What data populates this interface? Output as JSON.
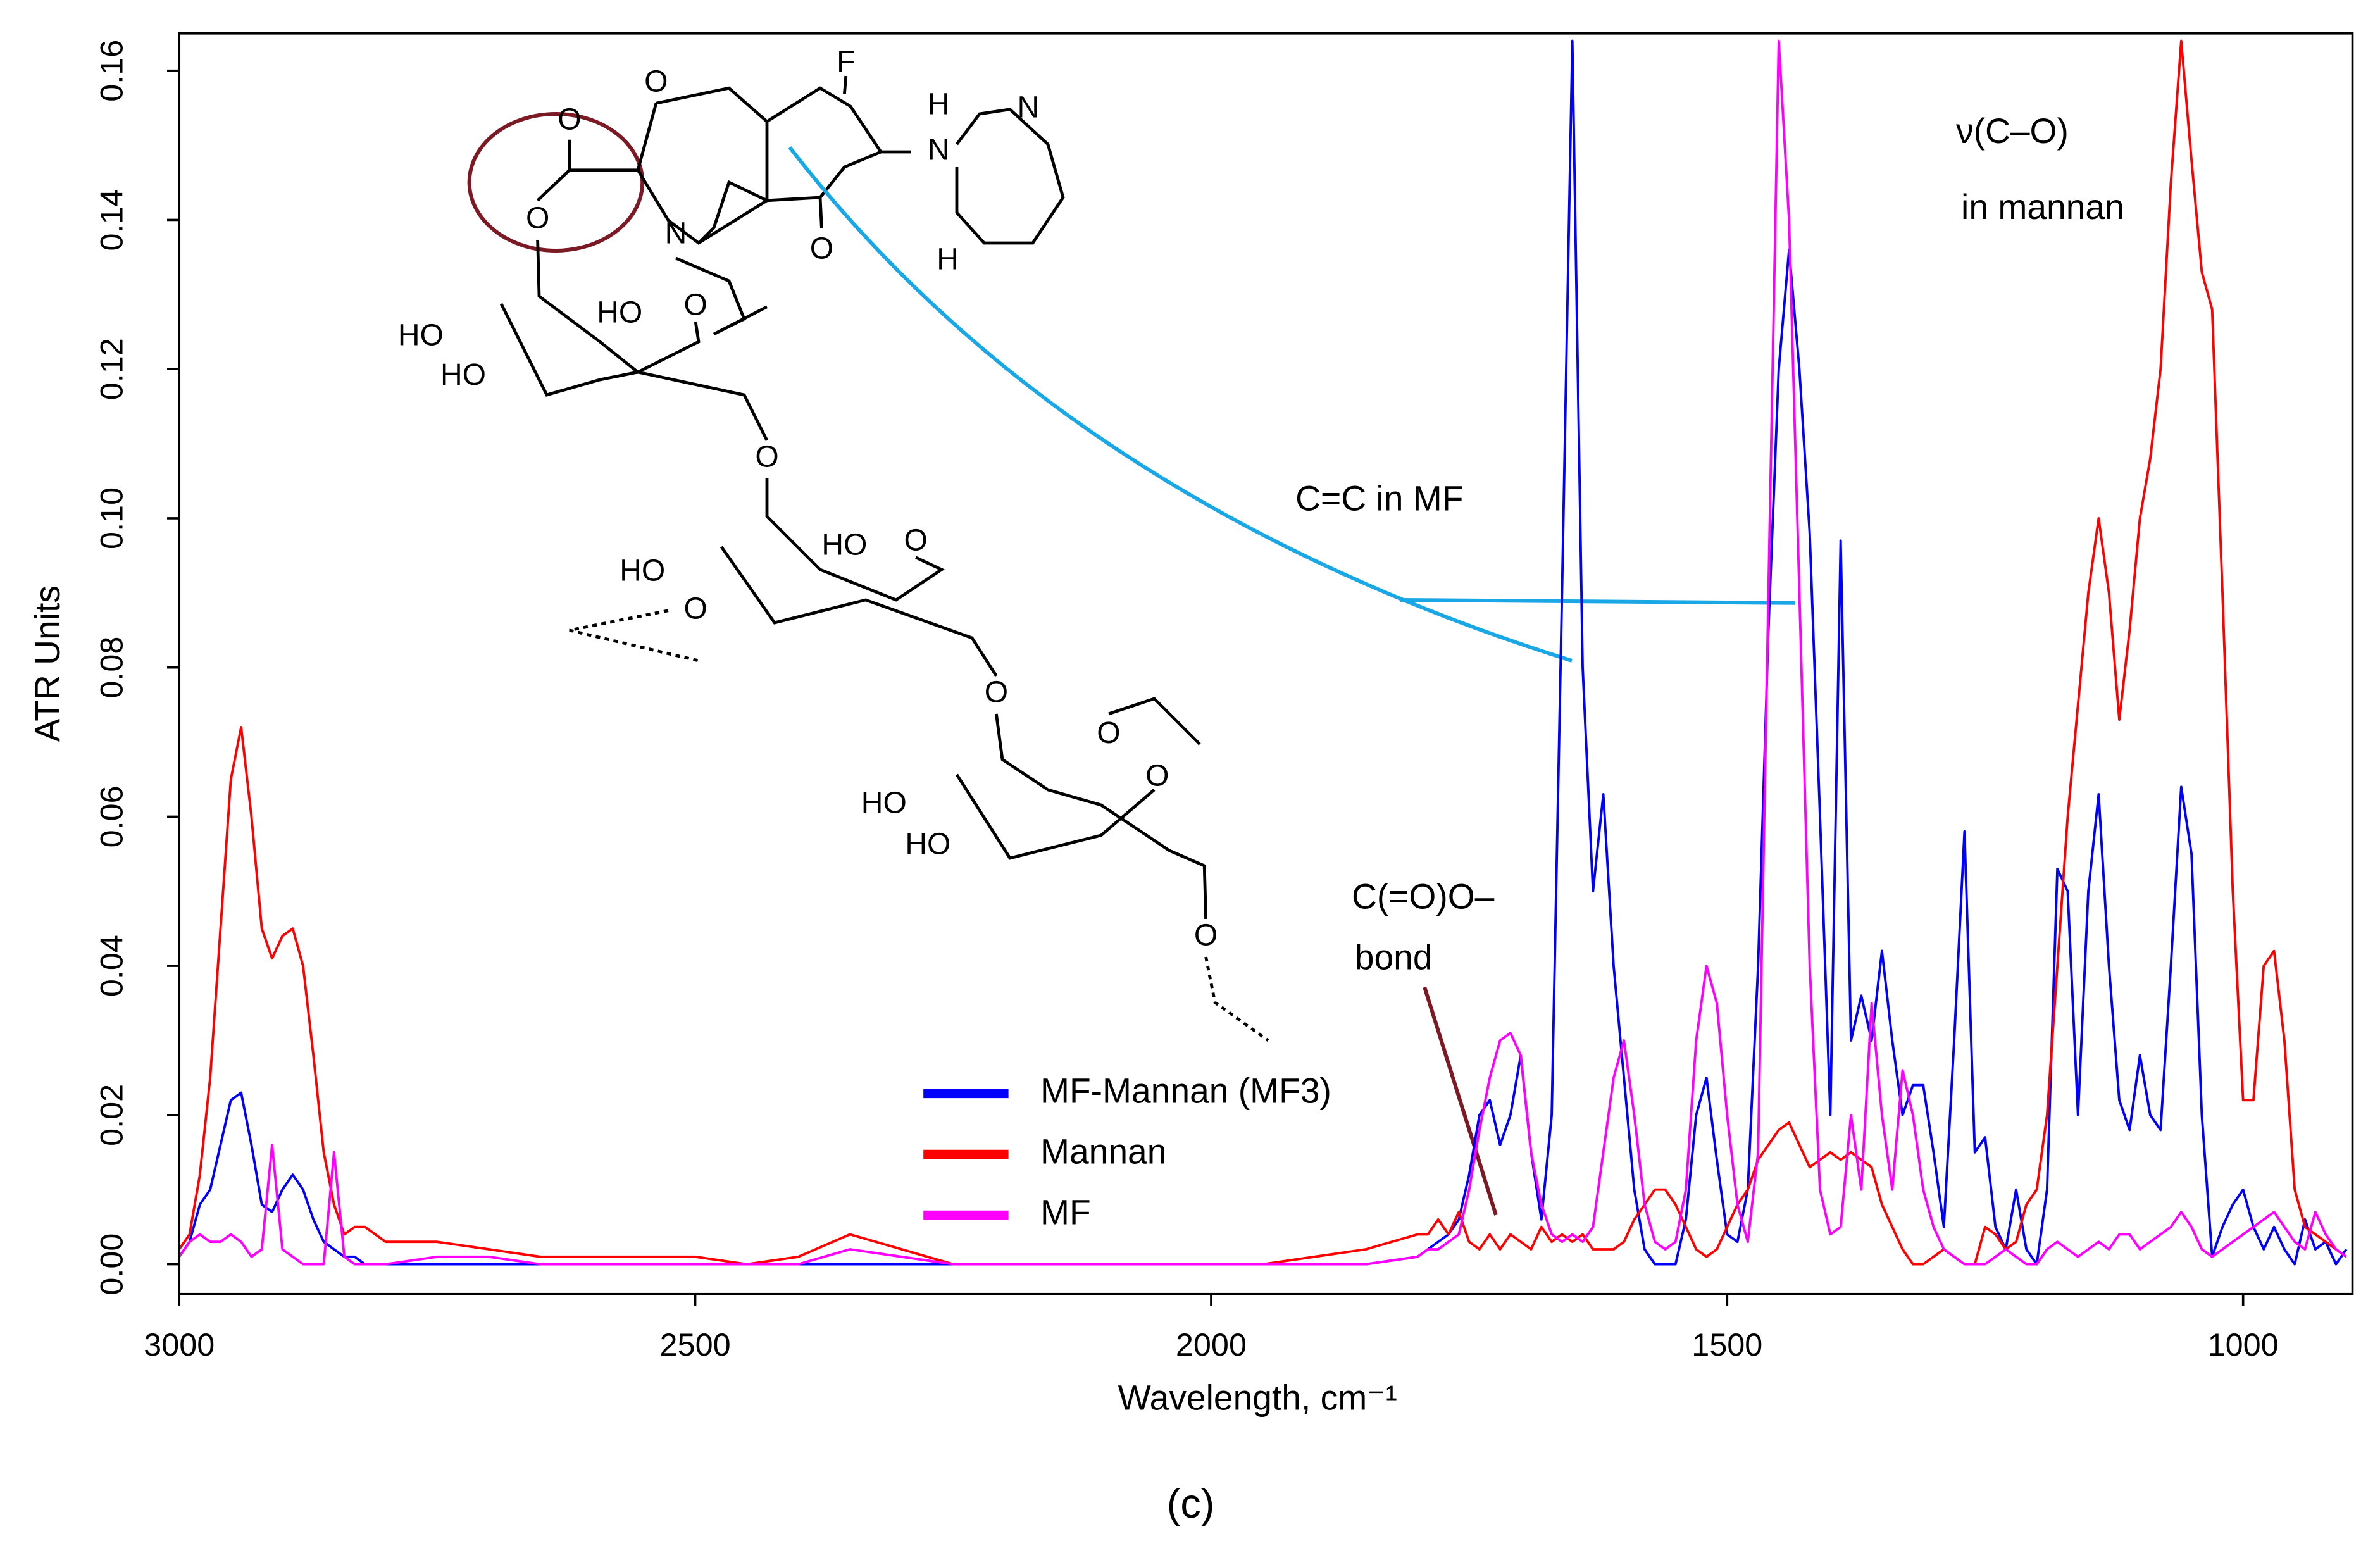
{
  "chart_data": {
    "type": "line",
    "x_label": "Wavelength, cm⁻¹",
    "y_label": "ATR Units",
    "caption": "(c)",
    "xlim": [
      3000,
      894
    ],
    "ylim": [
      -0.004,
      0.165
    ],
    "xticks": [
      3000,
      2500,
      2000,
      1500,
      1000
    ],
    "yticks": [
      {
        "value": 0,
        "label": "0.00"
      },
      {
        "value": 0.02,
        "label": "0.02"
      },
      {
        "value": 0.04,
        "label": "0.04"
      },
      {
        "value": 0.06,
        "label": "0.06"
      },
      {
        "value": 0.08,
        "label": "0.08"
      },
      {
        "value": 0.1,
        "label": "0.10"
      },
      {
        "value": 0.12,
        "label": "0.12"
      },
      {
        "value": 0.14,
        "label": "0.14"
      },
      {
        "value": 0.16,
        "label": "0.16"
      }
    ],
    "legend": "bottom-center",
    "annotations": [
      "ν(C–O)",
      "in mannan",
      "C=C in MF",
      "C(=O)O–",
      "bond"
    ],
    "structure_labels": [
      "O",
      "O",
      "O",
      "F",
      "N",
      "H",
      "N",
      "H",
      "N",
      "O",
      "HO",
      "HO",
      "O",
      "HO",
      "O",
      "HO",
      "HO",
      "O",
      "O",
      "O",
      "O",
      "HO",
      "O",
      "HO",
      "O"
    ],
    "x": [
      3000,
      2990,
      2980,
      2970,
      2960,
      2950,
      2940,
      2930,
      2920,
      2910,
      2900,
      2890,
      2880,
      2870,
      2860,
      2850,
      2840,
      2830,
      2820,
      2810,
      2800,
      2750,
      2700,
      2650,
      2600,
      2550,
      2500,
      2450,
      2400,
      2350,
      2300,
      2250,
      2200,
      2150,
      2100,
      2050,
      2000,
      1950,
      1900,
      1850,
      1800,
      1790,
      1780,
      1770,
      1760,
      1750,
      1740,
      1730,
      1720,
      1710,
      1700,
      1690,
      1680,
      1670,
      1660,
      1650,
      1640,
      1630,
      1620,
      1610,
      1600,
      1590,
      1580,
      1570,
      1560,
      1550,
      1540,
      1530,
      1520,
      1510,
      1500,
      1490,
      1480,
      1470,
      1460,
      1450,
      1440,
      1430,
      1420,
      1410,
      1400,
      1390,
      1380,
      1370,
      1360,
      1350,
      1340,
      1330,
      1320,
      1310,
      1300,
      1290,
      1280,
      1270,
      1260,
      1250,
      1240,
      1230,
      1220,
      1210,
      1200,
      1190,
      1180,
      1170,
      1160,
      1150,
      1140,
      1130,
      1120,
      1110,
      1100,
      1090,
      1080,
      1070,
      1060,
      1050,
      1040,
      1030,
      1020,
      1010,
      1000,
      990,
      980,
      970,
      960,
      950,
      940,
      930,
      920,
      910,
      900
    ],
    "series": [
      {
        "name": "MF-Mannan (MF3)",
        "color": "#0000ff",
        "values": [
          0.001,
          0.003,
          0.008,
          0.01,
          0.016,
          0.022,
          0.023,
          0.016,
          0.008,
          0.007,
          0.01,
          0.012,
          0.01,
          0.006,
          0.003,
          0.002,
          0.001,
          0.001,
          0,
          0,
          0,
          0,
          0,
          0,
          0,
          0,
          0,
          0,
          0,
          0,
          0,
          0,
          0,
          0,
          0,
          0,
          0,
          0,
          0,
          0,
          0.001,
          0.002,
          0.003,
          0.004,
          0.006,
          0.012,
          0.02,
          0.022,
          0.016,
          0.02,
          0.028,
          0.015,
          0.006,
          0.02,
          0.09,
          0.164,
          0.08,
          0.05,
          0.063,
          0.04,
          0.025,
          0.01,
          0.002,
          0,
          0,
          0,
          0.006,
          0.02,
          0.025,
          0.014,
          0.004,
          0.003,
          0.01,
          0.04,
          0.085,
          0.12,
          0.136,
          0.12,
          0.098,
          0.06,
          0.02,
          0.097,
          0.03,
          0.036,
          0.03,
          0.042,
          0.03,
          0.02,
          0.024,
          0.024,
          0.015,
          0.005,
          0.03,
          0.058,
          0.015,
          0.017,
          0.005,
          0.002,
          0.01,
          0.002,
          0,
          0.01,
          0.053,
          0.05,
          0.02,
          0.05,
          0.063,
          0.04,
          0.022,
          0.018,
          0.028,
          0.02,
          0.018,
          0.04,
          0.064,
          0.055,
          0.02,
          0.001,
          0.005,
          0.008,
          0.01,
          0.005,
          0.002,
          0.005,
          0.002,
          0,
          0.006,
          0.002,
          0.003,
          0,
          0.002
        ]
      },
      {
        "name": "Mannan",
        "color": "#ff0000",
        "values": [
          0.002,
          0.004,
          0.012,
          0.025,
          0.045,
          0.065,
          0.072,
          0.06,
          0.045,
          0.041,
          0.044,
          0.045,
          0.04,
          0.028,
          0.015,
          0.008,
          0.004,
          0.005,
          0.005,
          0.004,
          0.003,
          0.003,
          0.002,
          0.001,
          0.001,
          0.001,
          0.001,
          0,
          0.001,
          0.004,
          0.002,
          0,
          0,
          0,
          0,
          0,
          0,
          0,
          0.001,
          0.002,
          0.004,
          0.004,
          0.006,
          0.004,
          0.007,
          0.003,
          0.002,
          0.004,
          0.002,
          0.004,
          0.003,
          0.002,
          0.005,
          0.003,
          0.004,
          0.003,
          0.004,
          0.002,
          0.002,
          0.002,
          0.003,
          0.006,
          0.008,
          0.01,
          0.01,
          0.008,
          0.005,
          0.002,
          0.001,
          0.002,
          0.005,
          0.008,
          0.01,
          0.014,
          0.016,
          0.018,
          0.019,
          0.016,
          0.013,
          0.014,
          0.015,
          0.014,
          0.015,
          0.014,
          0.013,
          0.008,
          0.005,
          0.002,
          0,
          0,
          0.001,
          0.002,
          0.001,
          0,
          0,
          0.005,
          0.004,
          0.002,
          0.003,
          0.008,
          0.01,
          0.02,
          0.04,
          0.06,
          0.075,
          0.09,
          0.1,
          0.09,
          0.073,
          0.085,
          0.1,
          0.108,
          0.12,
          0.145,
          0.164,
          0.148,
          0.133,
          0.128,
          0.09,
          0.05,
          0.022,
          0.022,
          0.04,
          0.042,
          0.03,
          0.01,
          0.005,
          0.004,
          0.003,
          0.002,
          0.001
        ]
      },
      {
        "name": "MF",
        "color": "#ff00ff",
        "values": [
          0.001,
          0.003,
          0.004,
          0.003,
          0.003,
          0.004,
          0.003,
          0.001,
          0.002,
          0.016,
          0.002,
          0.001,
          0,
          0,
          0,
          0.015,
          0.001,
          0,
          0,
          0,
          0,
          0.001,
          0.001,
          0,
          0,
          0,
          0,
          0,
          0,
          0.002,
          0.001,
          0,
          0,
          0,
          0,
          0,
          0,
          0,
          0,
          0,
          0.001,
          0.002,
          0.002,
          0.003,
          0.004,
          0.01,
          0.018,
          0.025,
          0.03,
          0.031,
          0.028,
          0.015,
          0.008,
          0.004,
          0.003,
          0.004,
          0.003,
          0.005,
          0.015,
          0.025,
          0.03,
          0.02,
          0.008,
          0.003,
          0.002,
          0.003,
          0.01,
          0.03,
          0.04,
          0.035,
          0.02,
          0.008,
          0.003,
          0.015,
          0.09,
          0.164,
          0.14,
          0.09,
          0.04,
          0.01,
          0.004,
          0.005,
          0.02,
          0.01,
          0.035,
          0.02,
          0.01,
          0.026,
          0.02,
          0.01,
          0.005,
          0.002,
          0.001,
          0,
          0,
          0,
          0.001,
          0.002,
          0.001,
          0,
          0,
          0.002,
          0.003,
          0.002,
          0.001,
          0.002,
          0.003,
          0.002,
          0.004,
          0.004,
          0.002,
          0.003,
          0.004,
          0.005,
          0.007,
          0.005,
          0.002,
          0.001,
          0.002,
          0.003,
          0.004,
          0.005,
          0.006,
          0.007,
          0.005,
          0.003,
          0.002,
          0.007,
          0.004,
          0.002,
          0.001
        ]
      }
    ]
  }
}
